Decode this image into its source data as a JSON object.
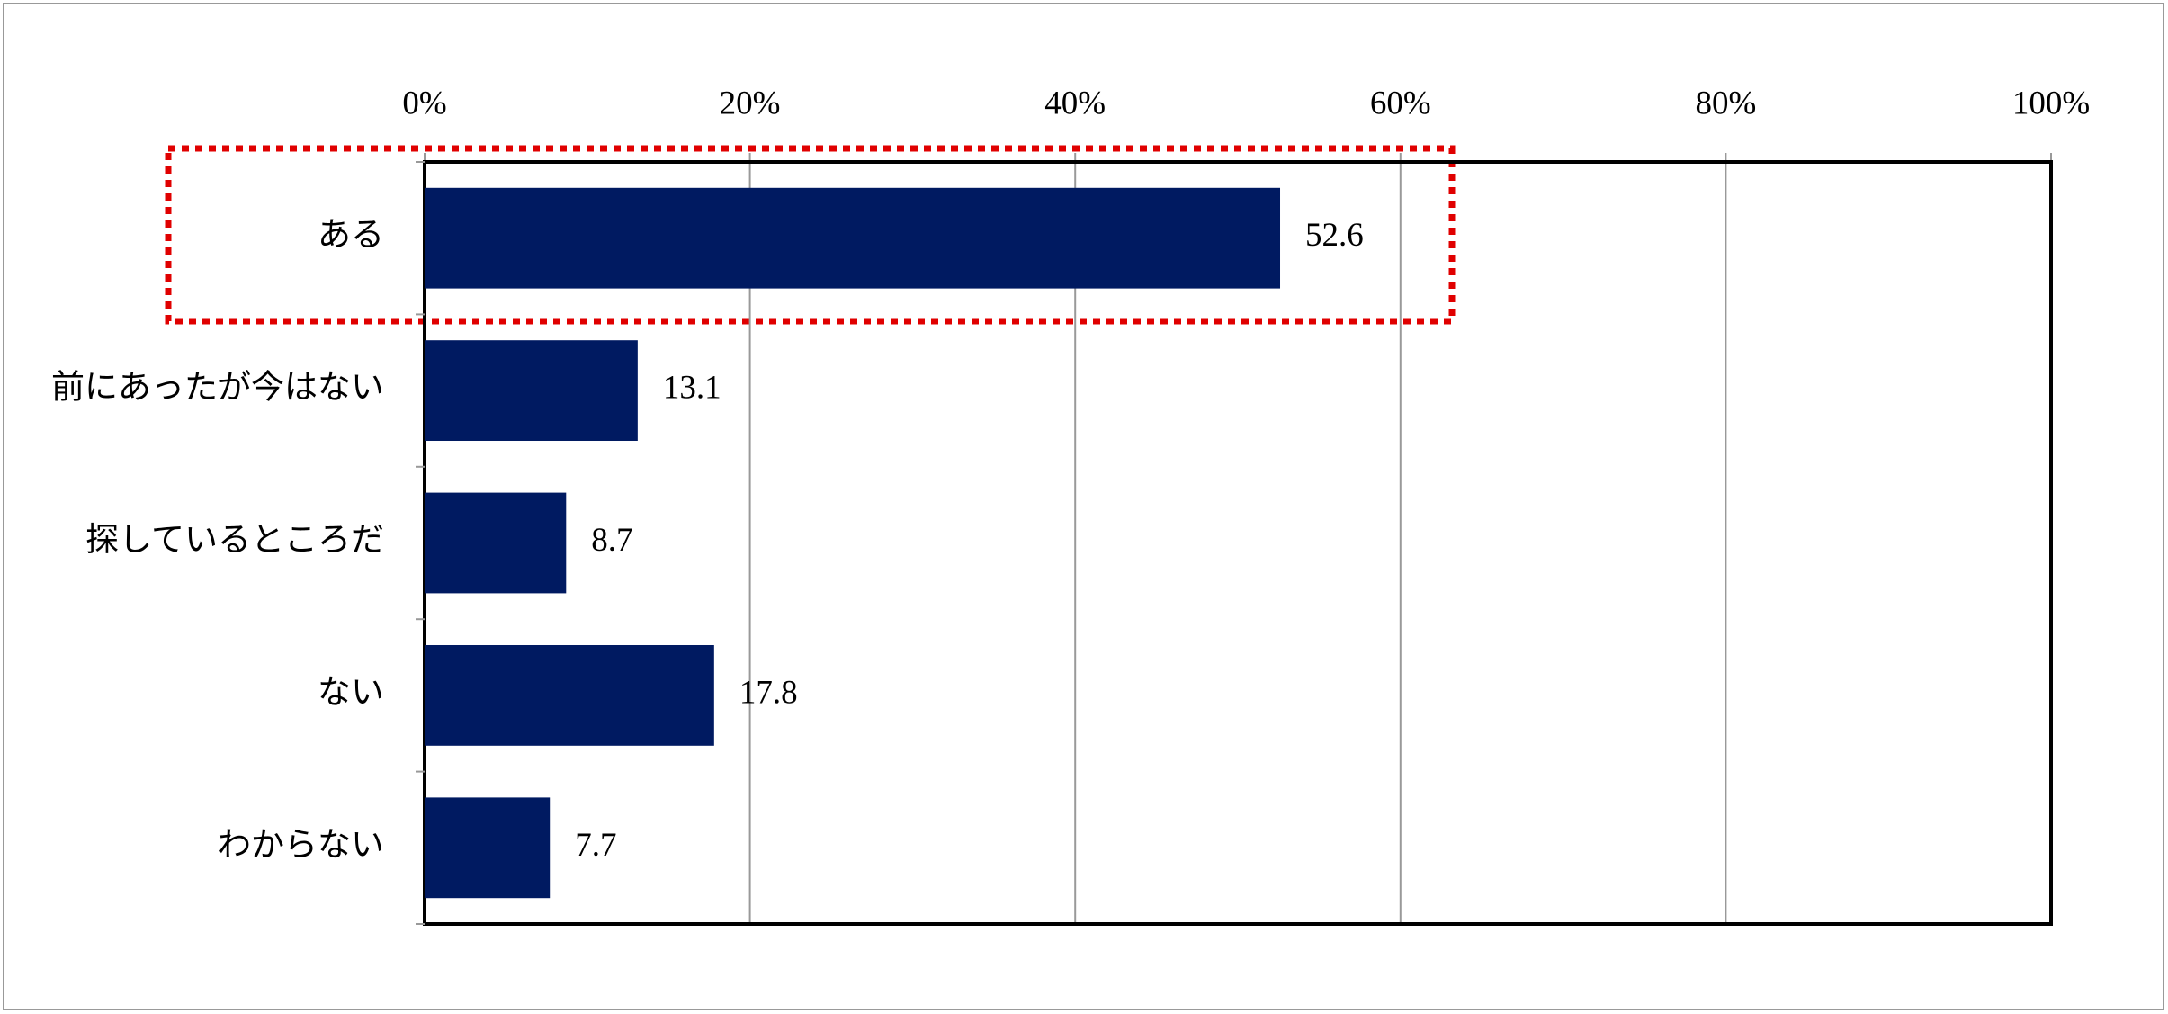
{
  "chart_data": {
    "type": "bar",
    "orientation": "horizontal",
    "categories": [
      "ある",
      "前にあったが今はない",
      "探しているところだ",
      "ない",
      "わからない"
    ],
    "values": [
      52.6,
      13.1,
      8.7,
      17.8,
      7.7
    ],
    "color": "#001a61",
    "xlim": [
      0,
      100
    ],
    "xticks": [
      {
        "value": 0,
        "label": "0%"
      },
      {
        "value": 20,
        "label": "20%"
      },
      {
        "value": 40,
        "label": "40%"
      },
      {
        "value": 60,
        "label": "60%"
      },
      {
        "value": 80,
        "label": "80%"
      },
      {
        "value": 100,
        "label": "100%"
      }
    ],
    "grid": true
  }
}
